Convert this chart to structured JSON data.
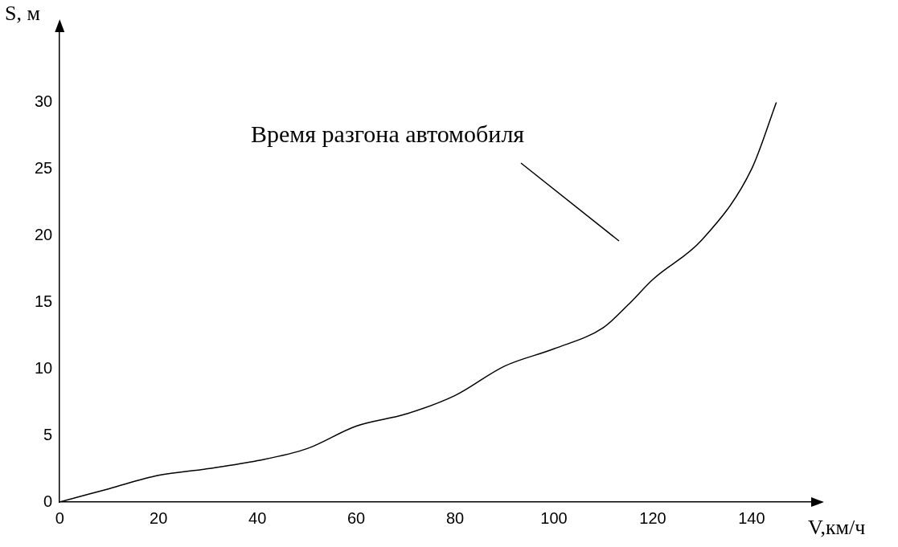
{
  "chart_data": {
    "type": "line",
    "xlabel": "V,км/ч",
    "ylabel": "S, м",
    "x": [
      0,
      10,
      20,
      30,
      40,
      50,
      60,
      70,
      80,
      90,
      100,
      110,
      115,
      120,
      130,
      140,
      145
    ],
    "series": [
      {
        "color": "#000000",
        "values": [
          0,
          1,
          2,
          2.5,
          3.1,
          4,
          5.7,
          6.6,
          8,
          10.2,
          11.5,
          13.1,
          14.8,
          16.7,
          19.7,
          25,
          30
        ]
      }
    ],
    "xlim": [
      0,
      154
    ],
    "xticks": [
      0,
      20,
      40,
      60,
      80,
      100,
      120,
      140
    ],
    "ylim": [
      0,
      36
    ],
    "yticks": [
      0,
      5,
      10,
      15,
      20,
      25,
      30
    ],
    "grid": false,
    "legend": false,
    "marker": "none",
    "line_style": "solid",
    "annotations": [
      "Время разгона автомобиля"
    ]
  }
}
